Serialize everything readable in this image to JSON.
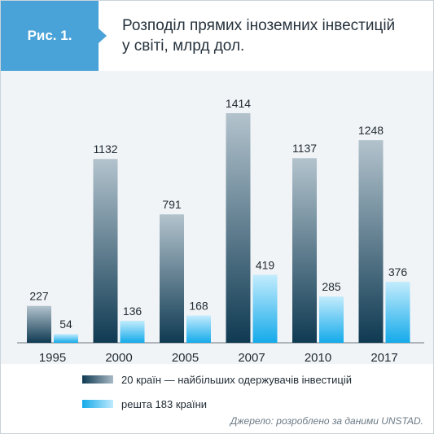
{
  "header": {
    "badge": "Рис. 1.",
    "title_line1": "Розподіл прямих іноземних інвестицій",
    "title_line2": "у світі, млрд дол."
  },
  "chart_data": {
    "type": "bar",
    "title": "Розподіл прямих іноземних інвестицій у світі, млрд дол.",
    "categories": [
      "1995",
      "2000",
      "2005",
      "2007",
      "2010",
      "2017"
    ],
    "series": [
      {
        "name": "20 країн — найбільших одержувачів інвестицій",
        "values": [
          227,
          1132,
          791,
          1414,
          1137,
          1248
        ]
      },
      {
        "name": "решта 183 країни",
        "values": [
          54,
          136,
          168,
          419,
          285,
          376
        ]
      }
    ],
    "ylim": [
      0,
      1414
    ],
    "grid": false,
    "legend_position": "bottom",
    "colors": {
      "series1_dark": "#0f3a52",
      "series1_light": "#b3c3cd",
      "series2_dark": "#14aaea",
      "series2_light": "#c3ecfd"
    }
  },
  "legend": {
    "item1": "20 країн — найбільших одержувачів інвестицій",
    "item2": "решта 183 країни"
  },
  "source": "Джерело: розроблено за даними UNSTAD."
}
